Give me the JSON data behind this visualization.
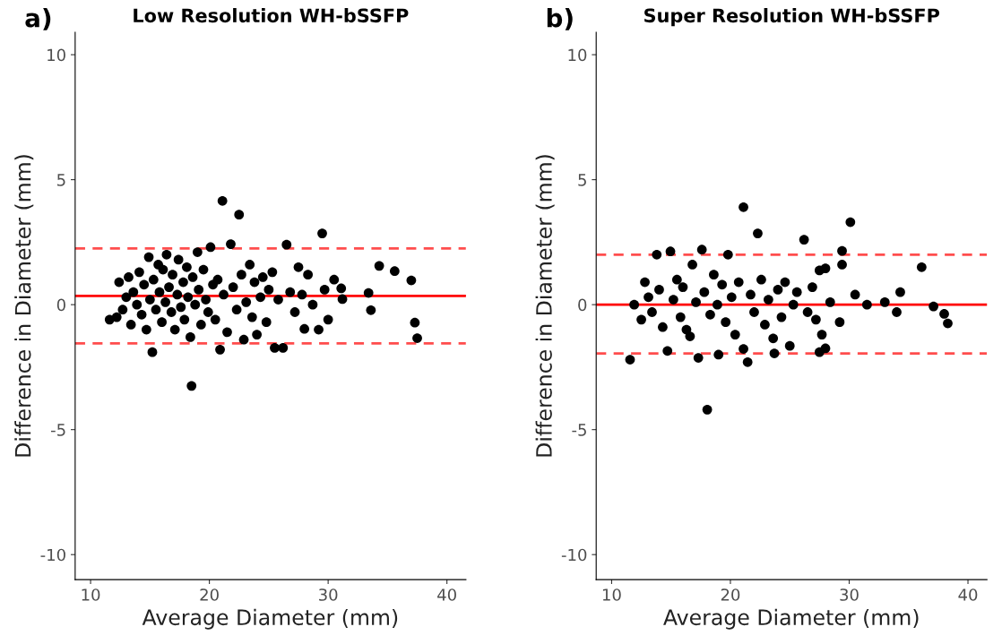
{
  "chart_data": [
    {
      "type": "scatter",
      "title": "Low Resolution WH-bSSFP",
      "xlabel": "Average Diameter (mm)",
      "ylabel": "Difference in Diameter (mm)",
      "annotations": [
        "a)"
      ],
      "xlim": [
        8.7,
        41.6
      ],
      "ylim": [
        -11,
        10.9
      ],
      "xticks": [
        10,
        20,
        30,
        40
      ],
      "yticks": [
        -10,
        -5,
        0,
        5,
        10
      ],
      "grid": false,
      "legend": false,
      "marker": "circle",
      "series": [
        {
          "color": "#000000",
          "x": [
            11.6,
            12.2,
            12.4,
            12.7,
            13.0,
            13.2,
            13.4,
            13.6,
            13.9,
            14.1,
            14.3,
            14.5,
            14.7,
            14.9,
            15.0,
            15.2,
            15.3,
            15.5,
            15.7,
            15.8,
            16.0,
            16.1,
            16.3,
            16.4,
            16.6,
            16.8,
            16.9,
            17.1,
            17.3,
            17.4,
            17.6,
            17.8,
            17.9,
            18.1,
            18.2,
            18.4,
            18.5,
            18.6,
            18.8,
            19.0,
            19.1,
            19.3,
            19.5,
            19.7,
            19.9,
            20.1,
            20.3,
            20.5,
            20.7,
            20.9,
            21.1,
            21.2,
            21.5,
            21.8,
            22.0,
            22.3,
            22.5,
            22.7,
            22.9,
            23.1,
            23.4,
            23.6,
            23.8,
            24.0,
            24.3,
            24.5,
            24.8,
            25.0,
            25.3,
            25.5,
            25.8,
            26.2,
            26.5,
            26.8,
            27.2,
            27.5,
            27.8,
            28.0,
            28.3,
            28.7,
            29.2,
            29.5,
            29.7,
            30.0,
            30.5,
            31.1,
            31.2,
            33.4,
            33.6,
            34.3,
            35.6,
            37.0,
            37.3,
            37.5
          ],
          "values": [
            -0.6,
            -0.5,
            0.9,
            -0.2,
            0.3,
            1.1,
            -0.8,
            0.5,
            0.0,
            1.3,
            -0.4,
            0.8,
            -1.0,
            1.9,
            0.2,
            -1.9,
            1.0,
            -0.2,
            1.6,
            0.5,
            -0.7,
            1.4,
            0.1,
            2.0,
            0.7,
            -0.3,
            1.2,
            -1.0,
            0.4,
            1.8,
            -0.1,
            0.9,
            -0.6,
            1.5,
            0.3,
            -1.3,
            -3.25,
            1.1,
            0.0,
            2.1,
            0.6,
            -0.8,
            1.4,
            0.2,
            -0.3,
            2.3,
            0.8,
            -0.6,
            1.0,
            -1.8,
            4.15,
            0.4,
            -1.1,
            2.42,
            0.7,
            -0.2,
            3.6,
            1.2,
            -1.4,
            0.1,
            1.6,
            -0.5,
            0.9,
            -1.2,
            0.3,
            1.1,
            -0.7,
            0.6,
            1.3,
            -1.73,
            0.2,
            -1.73,
            2.4,
            0.5,
            -0.3,
            1.5,
            0.4,
            -0.97,
            1.2,
            0.0,
            -1.0,
            2.85,
            0.6,
            -0.6,
            1.0,
            0.65,
            0.22,
            0.47,
            -0.22,
            1.55,
            1.34,
            0.97,
            -0.72,
            -1.34
          ]
        }
      ],
      "ref_lines": [
        {
          "axis": "y",
          "value": 0.35,
          "color": "#ff0000",
          "line_style": "solid"
        },
        {
          "axis": "y",
          "value": 2.25,
          "color": "#ff4d4d",
          "line_style": "dashed"
        },
        {
          "axis": "y",
          "value": -1.55,
          "color": "#ff4d4d",
          "line_style": "dashed"
        }
      ]
    },
    {
      "type": "scatter",
      "title": "Super Resolution WH-bSSFP",
      "xlabel": "Average Diameter (mm)",
      "ylabel": "Difference in Diameter (mm)",
      "annotations": [
        "b)"
      ],
      "xlim": [
        8.7,
        41.6
      ],
      "ylim": [
        -11,
        10.9
      ],
      "xticks": [
        10,
        20,
        30,
        40
      ],
      "yticks": [
        -10,
        -5,
        0,
        5,
        10
      ],
      "grid": false,
      "legend": false,
      "marker": "circle",
      "series": [
        {
          "color": "#000000",
          "x": [
            11.55,
            11.9,
            12.5,
            12.8,
            13.1,
            13.4,
            13.8,
            14.0,
            14.3,
            14.7,
            14.95,
            15.2,
            15.5,
            15.8,
            16.0,
            16.3,
            16.6,
            16.8,
            17.1,
            17.3,
            17.6,
            17.8,
            18.05,
            18.3,
            18.6,
            18.9,
            19.0,
            19.3,
            19.6,
            19.8,
            20.1,
            20.4,
            20.7,
            21.1,
            21.1,
            21.45,
            21.7,
            22.0,
            22.3,
            22.6,
            22.9,
            23.2,
            23.6,
            23.7,
            24.0,
            24.3,
            24.6,
            25.0,
            25.3,
            25.6,
            26.2,
            26.5,
            26.9,
            27.2,
            27.5,
            27.5,
            27.7,
            28.0,
            28.0,
            28.4,
            29.2,
            29.4,
            29.4,
            30.1,
            30.5,
            31.5,
            33.0,
            34.0,
            34.3,
            36.1,
            37.1,
            38.0,
            38.3
          ],
          "values": [
            -2.2,
            0.0,
            -0.6,
            0.9,
            0.3,
            -0.3,
            2.0,
            0.6,
            -0.9,
            -1.85,
            2.13,
            0.2,
            1.0,
            -0.5,
            0.7,
            -1.0,
            -1.27,
            1.6,
            0.1,
            -2.13,
            2.2,
            0.5,
            -4.2,
            -0.4,
            1.2,
            0.0,
            -2.0,
            0.8,
            -0.7,
            2.0,
            0.3,
            -1.2,
            0.9,
            3.9,
            -1.77,
            -2.3,
            0.4,
            -0.3,
            2.85,
            1.0,
            -0.8,
            0.2,
            -1.35,
            -1.95,
            0.6,
            -0.5,
            0.9,
            -1.65,
            0.0,
            0.5,
            2.6,
            -0.3,
            0.7,
            -0.6,
            1.37,
            -1.9,
            -1.2,
            1.45,
            -1.75,
            0.1,
            -0.7,
            1.6,
            2.15,
            3.3,
            0.4,
            0.0,
            0.1,
            -0.3,
            0.5,
            1.5,
            -0.07,
            -0.37,
            -0.75
          ]
        }
      ],
      "ref_lines": [
        {
          "axis": "y",
          "value": 0,
          "color": "#ff0000",
          "line_style": "solid"
        },
        {
          "axis": "y",
          "value": 2.0,
          "color": "#ff4d4d",
          "line_style": "dashed"
        },
        {
          "axis": "y",
          "value": -1.95,
          "color": "#ff4d4d",
          "line_style": "dashed"
        }
      ]
    }
  ]
}
